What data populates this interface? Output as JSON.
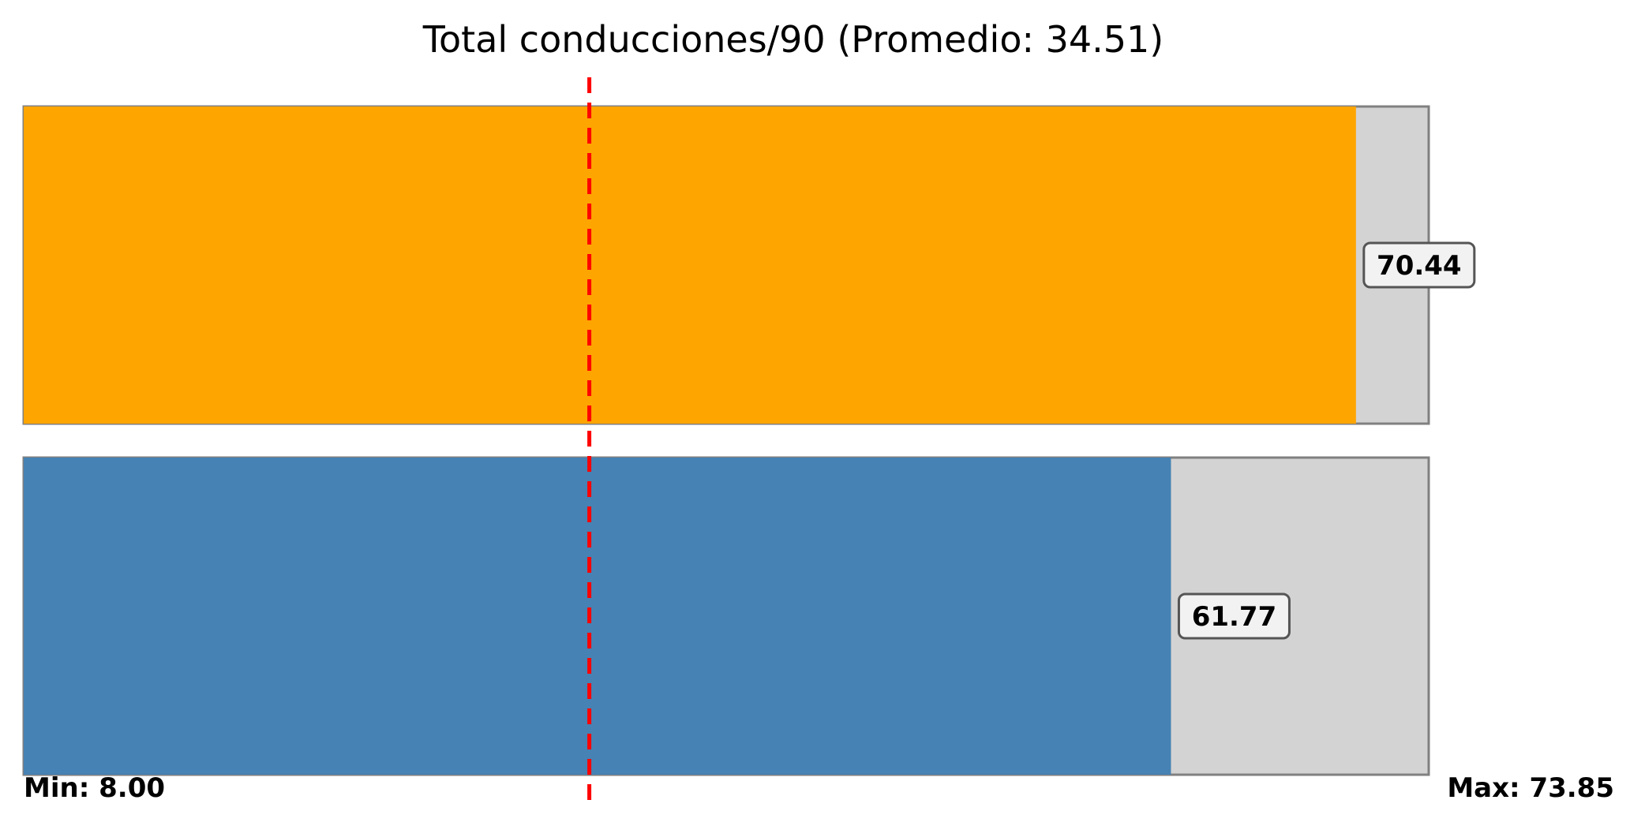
{
  "chart_data": {
    "type": "bar",
    "orientation": "horizontal",
    "title": "Total conducciones/90 (Promedio: 34.51)",
    "average": 34.51,
    "min": 8.0,
    "max": 73.85,
    "min_label": "Min: 8.00",
    "max_label": "Max: 73.85",
    "xlim": [
      8.0,
      73.85
    ],
    "grid": false,
    "legend": "none",
    "bars": [
      {
        "value": 70.44,
        "label": "70.44",
        "color": "#FFA500"
      },
      {
        "value": 61.77,
        "label": "61.77",
        "color": "#4682B4"
      }
    ],
    "track_color": "#D3D3D3",
    "track_border_color": "#808080",
    "average_line_color": "#FF0000"
  }
}
